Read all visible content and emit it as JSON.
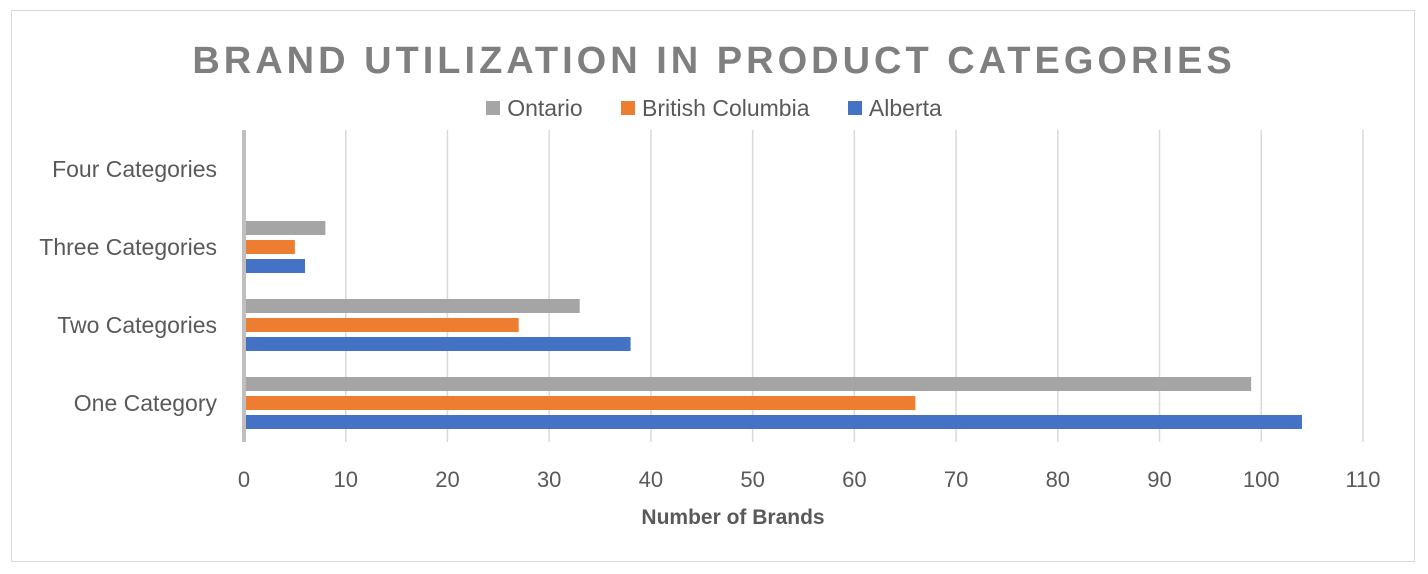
{
  "chart_data": {
    "type": "bar",
    "orientation": "horizontal",
    "title": "BRAND UTILIZATION IN PRODUCT CATEGORIES",
    "xlabel": "Number of Brands",
    "ylabel": "",
    "categories": [
      "One Category",
      "Two Categories",
      "Three Categories",
      "Four Categories"
    ],
    "series": [
      {
        "name": "Ontario",
        "color": "#a5a5a5",
        "values": [
          99,
          33,
          8,
          0
        ]
      },
      {
        "name": "British Columbia",
        "color": "#ed7d31",
        "values": [
          66,
          27,
          5,
          0
        ]
      },
      {
        "name": "Alberta",
        "color": "#4472c4",
        "values": [
          104,
          38,
          6,
          0
        ]
      }
    ],
    "xlim": [
      0,
      110
    ],
    "xticks": [
      "0",
      "10",
      "20",
      "30",
      "40",
      "50",
      "60",
      "70",
      "80",
      "90",
      "100",
      "110"
    ],
    "grid": true,
    "legend_position": "top"
  }
}
